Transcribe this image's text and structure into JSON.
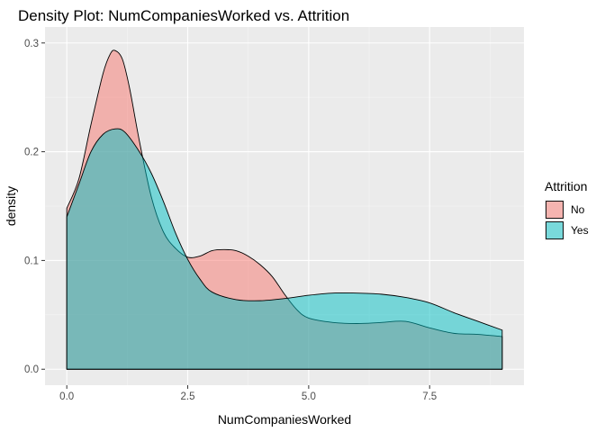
{
  "chart_data": {
    "type": "area",
    "title": "Density Plot: NumCompaniesWorked vs. Attrition",
    "xlabel": "NumCompaniesWorked",
    "ylabel": "density",
    "xlim": [
      -0.45,
      9.45
    ],
    "ylim": [
      -0.0147,
      0.3147
    ],
    "x_ticks": [
      0,
      2.5,
      5,
      7.5
    ],
    "x_tick_labels": [
      "0.0",
      "2.5",
      "5.0",
      "7.5"
    ],
    "y_ticks": [
      0,
      0.1,
      0.2,
      0.3
    ],
    "y_tick_labels": [
      "0.0",
      "0.1",
      "0.2",
      "0.3"
    ],
    "grid": true,
    "legend": {
      "title": "Attrition",
      "position": "right"
    },
    "series": [
      {
        "name": "No",
        "color": "#F8766D",
        "x": [
          0,
          0.25,
          0.5,
          0.75,
          0.9,
          1,
          1.15,
          1.3,
          1.5,
          1.75,
          2,
          2.25,
          2.5,
          2.75,
          3,
          3.25,
          3.5,
          3.75,
          4,
          4.25,
          4.5,
          4.75,
          5,
          5.5,
          6,
          6.5,
          7,
          7.5,
          8,
          8.5,
          9
        ],
        "values": [
          0.148,
          0.175,
          0.225,
          0.272,
          0.29,
          0.293,
          0.285,
          0.258,
          0.21,
          0.158,
          0.126,
          0.111,
          0.103,
          0.104,
          0.109,
          0.11,
          0.109,
          0.104,
          0.096,
          0.085,
          0.069,
          0.055,
          0.047,
          0.043,
          0.042,
          0.043,
          0.044,
          0.038,
          0.033,
          0.032,
          0.03
        ]
      },
      {
        "name": "Yes",
        "color": "#00BFC4",
        "x": [
          0,
          0.25,
          0.5,
          0.75,
          1,
          1.2,
          1.5,
          1.75,
          2,
          2.25,
          2.5,
          2.75,
          3,
          3.5,
          4,
          4.5,
          5,
          5.5,
          6,
          6.5,
          7,
          7.5,
          8,
          8.5,
          9
        ],
        "values": [
          0.14,
          0.17,
          0.2,
          0.216,
          0.221,
          0.218,
          0.2,
          0.18,
          0.154,
          0.125,
          0.101,
          0.083,
          0.071,
          0.064,
          0.063,
          0.065,
          0.068,
          0.07,
          0.07,
          0.069,
          0.066,
          0.061,
          0.052,
          0.044,
          0.036
        ]
      }
    ]
  }
}
